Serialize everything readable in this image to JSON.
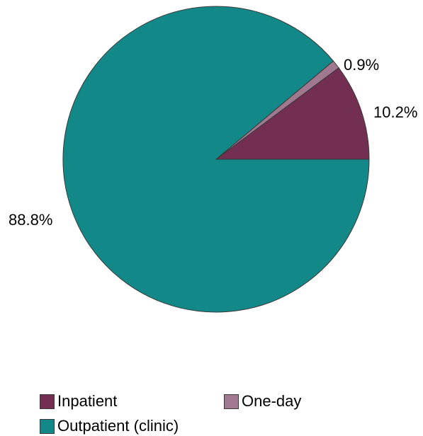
{
  "chart_data": {
    "type": "pie",
    "title": "",
    "slices": [
      {
        "label": "Inpatient",
        "value": 10.2,
        "display": "10.2%",
        "color": "#722f51"
      },
      {
        "label": "One-day",
        "value": 0.9,
        "display": "0.9%",
        "color": "#a07890"
      },
      {
        "label": "Outpatient (clinic)",
        "value": 88.8,
        "display": "88.8%",
        "color": "#138888"
      }
    ],
    "start_angle": "3 o'clock, counter-clockwise",
    "legend_position": "bottom"
  },
  "legend": {
    "items": [
      {
        "label": "Inpatient",
        "color": "#722f51"
      },
      {
        "label": "One-day",
        "color": "#a07890"
      },
      {
        "label": "Outpatient (clinic)",
        "color": "#138888"
      }
    ]
  }
}
